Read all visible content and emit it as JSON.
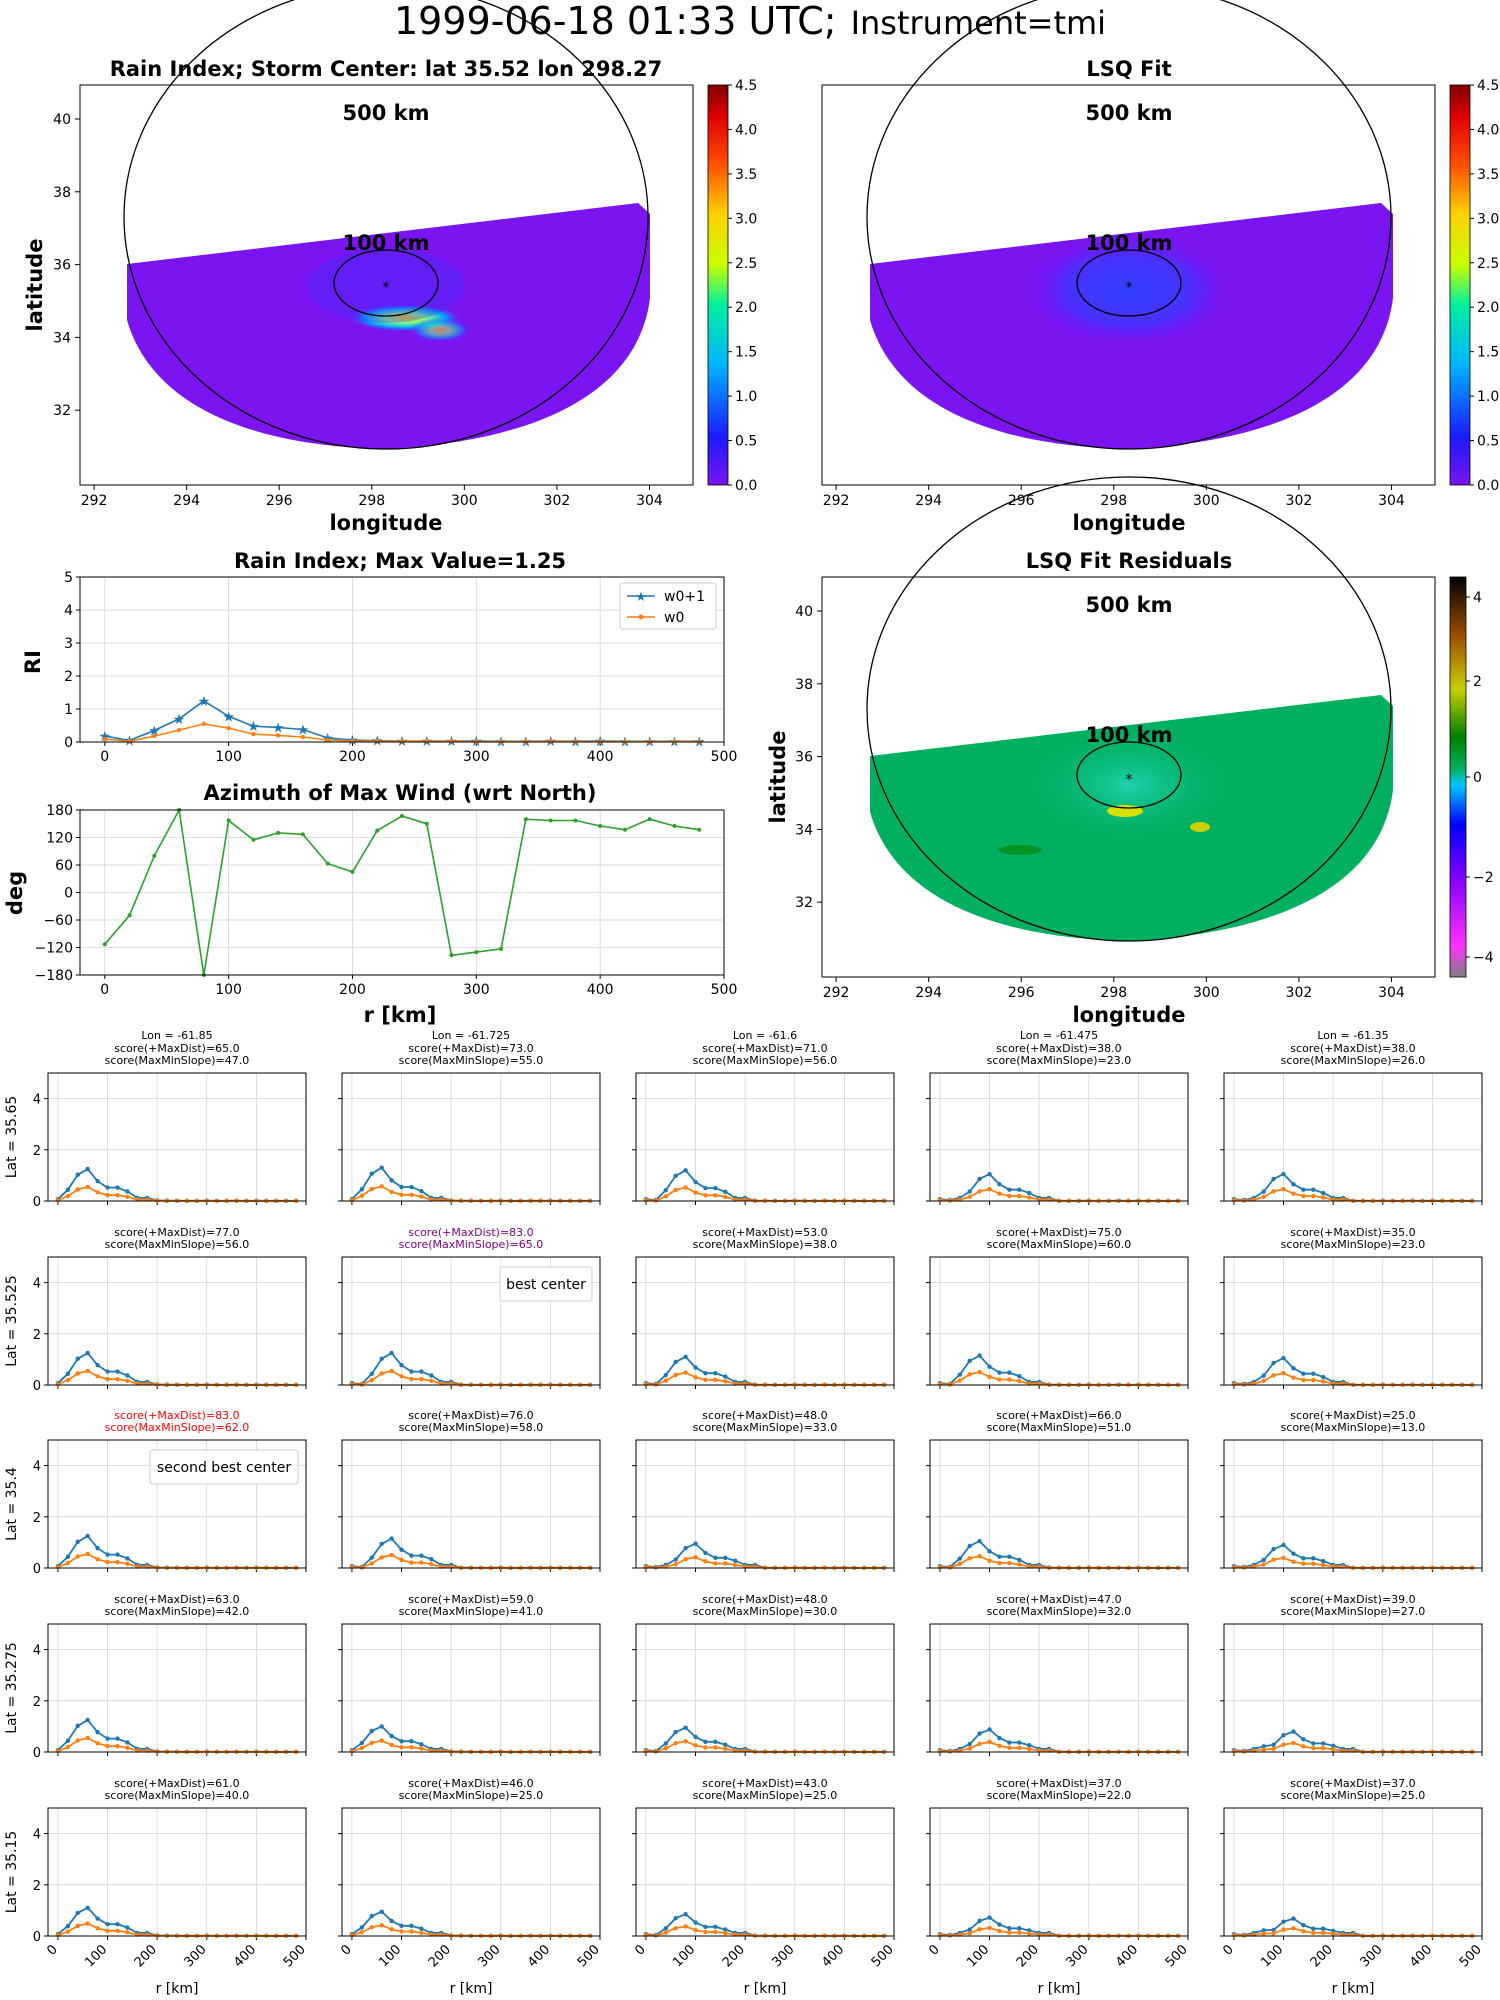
{
  "figure": {
    "title_main": "1999-06-18 01:33 UTC;",
    "title_sub": "Instrument=tmi"
  },
  "colors": {
    "w0p1": "#1f77b4",
    "w0": "#ff7f0e",
    "azimuth": "#2ca02c",
    "grid": "#d3d3d3",
    "rain_background": "#7a14f0",
    "residual_background": "#00b060",
    "best_center_text": "#800080",
    "second_best_text": "#ff0000"
  },
  "map_panels": {
    "rain_index": {
      "title": "Rain Index; Storm Center: lat 35.52 lon 298.27",
      "xlabel": "longitude",
      "ylabel": "latitude",
      "xticks": [
        "292",
        "294",
        "296",
        "298",
        "300",
        "302",
        "304"
      ],
      "yticks": [
        "32",
        "34",
        "36",
        "38",
        "40"
      ],
      "colorbar_ticks": [
        "0.0",
        "0.5",
        "1.0",
        "1.5",
        "2.0",
        "2.5",
        "3.0",
        "3.5",
        "4.0",
        "4.5"
      ],
      "ring_outer": "500 km",
      "ring_inner": "100 km",
      "storm_center_marker": "*"
    },
    "lsq_fit": {
      "title": "LSQ Fit",
      "xlabel": "longitude",
      "xticks": [
        "292",
        "294",
        "296",
        "298",
        "300",
        "302",
        "304"
      ],
      "colorbar_ticks": [
        "0.0",
        "0.5",
        "1.0",
        "1.5",
        "2.0",
        "2.5",
        "3.0",
        "3.5",
        "4.0",
        "4.5"
      ],
      "ring_outer": "500 km",
      "ring_inner": "100 km",
      "storm_center_marker": "*"
    },
    "residuals": {
      "title": "LSQ Fit Residuals",
      "xlabel": "longitude",
      "ylabel": "latitude",
      "xticks": [
        "292",
        "294",
        "296",
        "298",
        "300",
        "302",
        "304"
      ],
      "yticks": [
        "32",
        "34",
        "36",
        "38",
        "40"
      ],
      "colorbar_ticks": [
        "4",
        "2",
        "0",
        "−2",
        "−4"
      ],
      "ring_outer": "500 km",
      "ring_inner": "100 km",
      "storm_center_marker": "*"
    }
  },
  "chart_data": [
    {
      "id": "rain-index-profile",
      "type": "line",
      "title": "Rain Index; Max Value=1.25",
      "xlabel": "",
      "ylabel": "RI",
      "xlim": [
        -20,
        500
      ],
      "ylim": [
        0,
        5
      ],
      "xticks": [
        "0",
        "100",
        "200",
        "300",
        "400",
        "500"
      ],
      "yticks": [
        "0",
        "1",
        "2",
        "3",
        "4",
        "5"
      ],
      "legend": "top-right",
      "x": [
        0,
        20,
        40,
        60,
        80,
        100,
        120,
        140,
        160,
        180,
        200,
        220,
        240,
        260,
        280,
        300,
        320,
        340,
        360,
        380,
        400,
        420,
        440,
        460,
        480
      ],
      "series": [
        {
          "name": "w0+1",
          "values": [
            0.18,
            0.05,
            0.35,
            0.7,
            1.25,
            0.78,
            0.48,
            0.44,
            0.38,
            0.12,
            0.06,
            0.04,
            0.03,
            0.03,
            0.03,
            0.03,
            0.02,
            0.02,
            0.03,
            0.02,
            0.03,
            0.02,
            0.02,
            0.02,
            0.02
          ]
        },
        {
          "name": "w0",
          "values": [
            0.09,
            0.02,
            0.18,
            0.36,
            0.55,
            0.42,
            0.24,
            0.2,
            0.15,
            0.06,
            0.03,
            0.02,
            0.02,
            0.02,
            0.02,
            0.01,
            0.01,
            0.01,
            0.02,
            0.01,
            0.01,
            0.01,
            0.01,
            0.01,
            0.01
          ]
        }
      ]
    },
    {
      "id": "azimuth-profile",
      "type": "line",
      "title": "Azimuth of Max Wind (wrt North)",
      "xlabel": "r [km]",
      "ylabel": "deg",
      "xlim": [
        -20,
        500
      ],
      "ylim": [
        -180,
        180
      ],
      "xticks": [
        "0",
        "100",
        "200",
        "300",
        "400",
        "500"
      ],
      "yticks": [
        "180",
        "120",
        "60",
        "0",
        "−60",
        "−120",
        "−180"
      ],
      "x": [
        0,
        20,
        40,
        60,
        80,
        100,
        120,
        140,
        160,
        180,
        200,
        220,
        240,
        260,
        280,
        300,
        320,
        340,
        360,
        380,
        400,
        420,
        440,
        460,
        480
      ],
      "values": [
        -113,
        -50,
        80,
        180,
        -180,
        157,
        115,
        130,
        127,
        63,
        45,
        135,
        167,
        150,
        -137,
        -130,
        -123,
        160,
        157,
        157,
        145,
        137,
        160,
        145,
        137
      ]
    },
    {
      "id": "candidate-grid",
      "type": "line",
      "xlabel": "r [km]",
      "xlim": [
        -20,
        500
      ],
      "ylim": [
        0,
        5
      ],
      "xticks": [
        "0",
        "100",
        "200",
        "300",
        "400",
        "500"
      ],
      "yticks": [
        "0",
        "2",
        "4"
      ],
      "x": [
        0,
        20,
        40,
        60,
        80,
        100,
        120,
        140,
        160,
        180,
        200,
        220,
        240,
        260,
        280,
        300,
        320,
        340,
        360,
        380,
        400,
        420,
        440,
        460,
        480
      ],
      "columns": [
        "Lon = -61.85",
        "Lon = -61.725",
        "Lon = -61.6",
        "Lon = -61.475",
        "Lon = -61.35"
      ],
      "rows": [
        {
          "label": "Lat = 35.65",
          "panels": [
            {
              "score_maxdist": "score(+MaxDist)=65.0",
              "score_slope": "score(MaxMinSlope)=47.0",
              "peak": 1.25,
              "peak_index": 3
            },
            {
              "score_maxdist": "score(+MaxDist)=73.0",
              "score_slope": "score(MaxMinSlope)=55.0",
              "peak": 1.3,
              "peak_index": 3
            },
            {
              "score_maxdist": "score(+MaxDist)=71.0",
              "score_slope": "score(MaxMinSlope)=56.0",
              "peak": 1.2,
              "peak_index": 4
            },
            {
              "score_maxdist": "score(+MaxDist)=38.0",
              "score_slope": "score(MaxMinSlope)=23.0",
              "peak": 1.05,
              "peak_index": 5
            },
            {
              "score_maxdist": "score(+MaxDist)=38.0",
              "score_slope": "score(MaxMinSlope)=26.0",
              "peak": 1.05,
              "peak_index": 5
            }
          ]
        },
        {
          "label": "Lat = 35.525",
          "panels": [
            {
              "score_maxdist": "score(+MaxDist)=77.0",
              "score_slope": "score(MaxMinSlope)=56.0",
              "peak": 1.25,
              "peak_index": 3
            },
            {
              "score_maxdist": "score(+MaxDist)=83.0",
              "score_slope": "score(MaxMinSlope)=65.0",
              "peak": 1.25,
              "peak_index": 4,
              "highlight": "best",
              "note": "best center"
            },
            {
              "score_maxdist": "score(+MaxDist)=53.0",
              "score_slope": "score(MaxMinSlope)=38.0",
              "peak": 1.1,
              "peak_index": 4
            },
            {
              "score_maxdist": "score(+MaxDist)=75.0",
              "score_slope": "score(MaxMinSlope)=60.0",
              "peak": 1.15,
              "peak_index": 4
            },
            {
              "score_maxdist": "score(+MaxDist)=35.0",
              "score_slope": "score(MaxMinSlope)=23.0",
              "peak": 1.05,
              "peak_index": 5
            }
          ]
        },
        {
          "label": "Lat = 35.4",
          "panels": [
            {
              "score_maxdist": "score(+MaxDist)=83.0",
              "score_slope": "score(MaxMinSlope)=62.0",
              "peak": 1.25,
              "peak_index": 3,
              "highlight": "second",
              "note": "second best center"
            },
            {
              "score_maxdist": "score(+MaxDist)=76.0",
              "score_slope": "score(MaxMinSlope)=58.0",
              "peak": 1.15,
              "peak_index": 4
            },
            {
              "score_maxdist": "score(+MaxDist)=48.0",
              "score_slope": "score(MaxMinSlope)=33.0",
              "peak": 0.95,
              "peak_index": 5
            },
            {
              "score_maxdist": "score(+MaxDist)=66.0",
              "score_slope": "score(MaxMinSlope)=51.0",
              "peak": 1.05,
              "peak_index": 4
            },
            {
              "score_maxdist": "score(+MaxDist)=25.0",
              "score_slope": "score(MaxMinSlope)=13.0",
              "peak": 0.9,
              "peak_index": 5
            }
          ]
        },
        {
          "label": "Lat = 35.275",
          "panels": [
            {
              "score_maxdist": "score(+MaxDist)=63.0",
              "score_slope": "score(MaxMinSlope)=42.0",
              "peak": 1.25,
              "peak_index": 3
            },
            {
              "score_maxdist": "score(+MaxDist)=59.0",
              "score_slope": "score(MaxMinSlope)=41.0",
              "peak": 1.0,
              "peak_index": 3
            },
            {
              "score_maxdist": "score(+MaxDist)=48.0",
              "score_slope": "score(MaxMinSlope)=30.0",
              "peak": 0.95,
              "peak_index": 4
            },
            {
              "score_maxdist": "score(+MaxDist)=47.0",
              "score_slope": "score(MaxMinSlope)=32.0",
              "peak": 0.88,
              "peak_index": 5
            },
            {
              "score_maxdist": "score(+MaxDist)=39.0",
              "score_slope": "score(MaxMinSlope)=27.0",
              "peak": 0.8,
              "peak_index": 6
            }
          ]
        },
        {
          "label": "Lat = 35.15",
          "panels": [
            {
              "score_maxdist": "score(+MaxDist)=61.0",
              "score_slope": "score(MaxMinSlope)=40.0",
              "peak": 1.1,
              "peak_index": 3
            },
            {
              "score_maxdist": "score(+MaxDist)=46.0",
              "score_slope": "score(MaxMinSlope)=25.0",
              "peak": 0.95,
              "peak_index": 3
            },
            {
              "score_maxdist": "score(+MaxDist)=43.0",
              "score_slope": "score(MaxMinSlope)=25.0",
              "peak": 0.85,
              "peak_index": 4
            },
            {
              "score_maxdist": "score(+MaxDist)=37.0",
              "score_slope": "score(MaxMinSlope)=22.0",
              "peak": 0.72,
              "peak_index": 5
            },
            {
              "score_maxdist": "score(+MaxDist)=37.0",
              "score_slope": "score(MaxMinSlope)=25.0",
              "peak": 0.68,
              "peak_index": 6
            }
          ]
        }
      ]
    }
  ]
}
